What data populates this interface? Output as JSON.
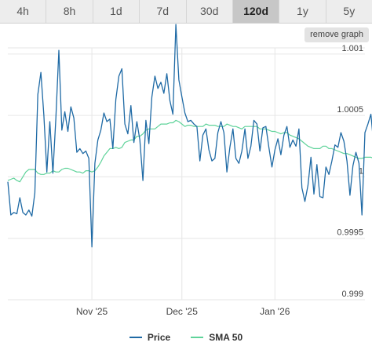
{
  "tabs": [
    {
      "label": "4h",
      "active": false
    },
    {
      "label": "8h",
      "active": false
    },
    {
      "label": "1d",
      "active": false
    },
    {
      "label": "7d",
      "active": false
    },
    {
      "label": "30d",
      "active": false
    },
    {
      "label": "120d",
      "active": true
    },
    {
      "label": "1y",
      "active": false
    },
    {
      "label": "5y",
      "active": false
    }
  ],
  "remove_graph_label": "remove graph",
  "colors": {
    "price": "#1f6aa5",
    "sma": "#5fd39a",
    "grid": "#e6e6e6"
  },
  "chart_data": {
    "type": "line",
    "x_ticks": [
      {
        "label": "Nov '25",
        "at": "2025-11-01"
      },
      {
        "label": "Dec '25",
        "at": "2025-12-01"
      },
      {
        "label": "Jan '26",
        "at": "2026-01-01"
      }
    ],
    "x_range": [
      "2025-10-04",
      "2026-01-31"
    ],
    "y_ticks": [
      "1.001",
      "1.0005",
      "1",
      "0.9995",
      "0.999"
    ],
    "ylim": [
      0.999,
      1.00105
    ],
    "grid": true,
    "legend_position": "bottom",
    "series": [
      {
        "name": "Price",
        "color": "#1f6aa5",
        "x_start": "2025-10-04",
        "values": [
          0.99996,
          0.99969,
          0.99971,
          0.9997,
          0.99983,
          0.99971,
          0.99969,
          0.99973,
          0.99968,
          0.99987,
          1.00067,
          1.00085,
          1.0005,
          1.00004,
          1.00045,
          1.00003,
          1.00048,
          1.00103,
          1.00038,
          1.00053,
          1.00037,
          1.00057,
          1.00048,
          1.0002,
          1.00023,
          1.00019,
          1.00021,
          1.00015,
          0.99943,
          1.00011,
          1.0003,
          1.00038,
          1.00052,
          1.00045,
          1.00047,
          1.00023,
          1.00063,
          1.00082,
          1.00088,
          1.00043,
          1.00035,
          1.00058,
          1.00028,
          1.00045,
          1.0003,
          0.99997,
          1.00046,
          1.00027,
          1.00065,
          1.00082,
          1.00072,
          1.00077,
          1.00068,
          1.00084,
          1.00062,
          1.00051,
          1.00124,
          1.00079,
          1.00065,
          1.00052,
          1.00045,
          1.00046,
          1.00043,
          1.00041,
          1.00013,
          1.00034,
          1.00039,
          1.00022,
          1.00013,
          1.00015,
          1.00036,
          1.00045,
          1.00036,
          1.00004,
          1.00024,
          1.00039,
          1.00015,
          1.00011,
          1.00021,
          1.00039,
          1.00015,
          1.00025,
          1.00046,
          1.00043,
          1.00021,
          1.0004,
          1.00041,
          1.00024,
          1.00008,
          1.00022,
          1.00031,
          1.00018,
          1.00034,
          1.00041,
          1.00024,
          1.0003,
          1.00025,
          1.00039,
          0.99991,
          0.9998,
          0.99993,
          1.00016,
          0.99986,
          1.0001,
          0.99984,
          0.99983,
          1.00008,
          1.00002,
          1.00013,
          1.00026,
          1.00024,
          1.00036,
          1.00029,
          1.00013,
          0.99985,
          1.00009,
          1.0002,
          1.00011,
          0.99969,
          1.00036,
          1.00043,
          1.00051,
          1.00024
        ]
      },
      {
        "name": "SMA 50",
        "color": "#5fd39a",
        "x_start": "2025-10-04",
        "values": [
          0.99997,
          0.99998,
          0.99999,
          0.99997,
          0.99996,
          1.0,
          1.00004,
          1.00006,
          1.00006,
          1.00006,
          1.00003,
          1.00002,
          1.00002,
          1.00003,
          1.00003,
          1.00005,
          1.00004,
          1.00004,
          1.00006,
          1.00007,
          1.00007,
          1.00006,
          1.00005,
          1.00004,
          1.00004,
          1.00003,
          1.00005,
          1.00005,
          1.00004,
          1.00005,
          1.00008,
          1.00012,
          1.00017,
          1.0002,
          1.00023,
          1.00023,
          1.00024,
          1.00023,
          1.00024,
          1.00028,
          1.00029,
          1.0003,
          1.0003,
          1.00033,
          1.00033,
          1.00035,
          1.00038,
          1.00039,
          1.00039,
          1.00039,
          1.00041,
          1.00043,
          1.00043,
          1.00043,
          1.00044,
          1.00044,
          1.00046,
          1.00045,
          1.00043,
          1.00041,
          1.00042,
          1.00042,
          1.00041,
          1.00041,
          1.00041,
          1.00041,
          1.00043,
          1.00042,
          1.00042,
          1.00042,
          1.00041,
          1.00041,
          1.00041,
          1.00043,
          1.00042,
          1.00041,
          1.00041,
          1.0004,
          1.00039,
          1.00041,
          1.00041,
          1.00041,
          1.00041,
          1.00041,
          1.00039,
          1.00039,
          1.00039,
          1.00038,
          1.00037,
          1.00037,
          1.00036,
          1.00035,
          1.00036,
          1.00036,
          1.00034,
          1.00033,
          1.00032,
          1.00031,
          1.00029,
          1.00027,
          1.00025,
          1.00024,
          1.00023,
          1.00023,
          1.00023,
          1.00025,
          1.00025,
          1.00023,
          1.00023,
          1.00022,
          1.00021,
          1.0002,
          1.00019,
          1.00019,
          1.00018,
          1.00017,
          1.00016,
          1.00015,
          1.00015,
          1.00016,
          1.00016,
          1.00016,
          1.00015
        ]
      }
    ]
  }
}
